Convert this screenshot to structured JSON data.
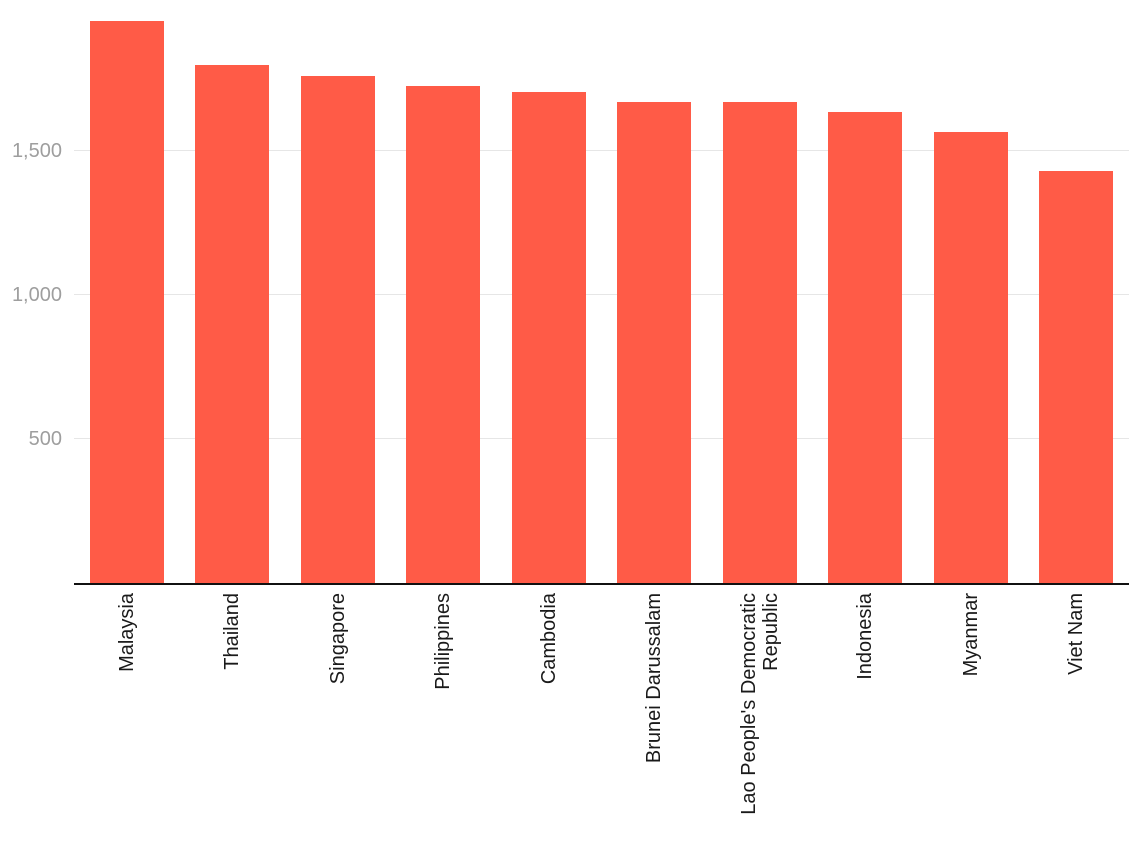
{
  "chart_data": {
    "type": "bar",
    "categories": [
      "Malaysia",
      "Thailand",
      "Singapore",
      "Philippines",
      "Cambodia",
      "Brunei Darussalam",
      "Lao People's Democratic Republic",
      "Indonesia",
      "Myanmar",
      "Viet Nam"
    ],
    "values": [
      1950,
      1800,
      1760,
      1725,
      1705,
      1670,
      1670,
      1635,
      1565,
      1430
    ],
    "yticks": [
      {
        "value": 500,
        "label": "500"
      },
      {
        "value": 1000,
        "label": "1,000"
      },
      {
        "value": 1500,
        "label": "1,500"
      }
    ],
    "ylim": [
      0,
      2024
    ],
    "xlabel": "",
    "ylabel": "",
    "legend": "none",
    "grid": "horizontal",
    "colors": {
      "bar": "#FF5B47",
      "gridline": "#E6E6E6",
      "ytick_text": "#9E9E9E",
      "xtick_text": "#1A1A1A",
      "axis_line": "#111111"
    }
  }
}
